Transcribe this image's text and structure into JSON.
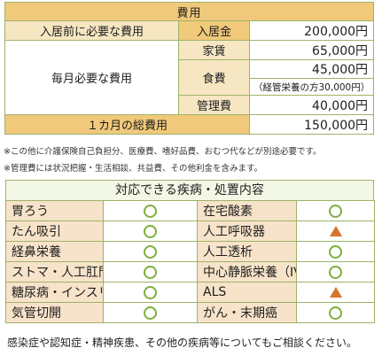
{
  "cost": {
    "title": "費用",
    "entry_fee_label": "入居前に必要な費用",
    "entry_fee_sub": "入居金",
    "entry_fee_value": "200,000円",
    "monthly_label": "毎月必要な費用",
    "rent_label": "家賃",
    "rent_value": "65,000円",
    "food_label": "食費",
    "food_value": "45,000円",
    "food_note": "（経管栄養の方30,000円）",
    "mgmt_label": "管理費",
    "mgmt_value": "40,000円",
    "total_label": "１カ月の総費用",
    "total_value": "150,000円"
  },
  "notes": [
    "※この他に介護保険自己負担分、医療費、嗜好品費、おむつ代などが別途必要です。",
    "※管理費には状況把握・生活相談、共益費、その他利金を含みます。"
  ],
  "diseases": {
    "title": "対応できる疾病・処置内容",
    "rows": [
      {
        "left": "胃ろう",
        "left_mark": "circle",
        "right": "在宅酸素",
        "right_mark": "circle"
      },
      {
        "left": "たん吸引",
        "left_mark": "circle",
        "right": "人工呼吸器",
        "right_mark": "triangle"
      },
      {
        "left": "経鼻栄養",
        "left_mark": "circle",
        "right": "人工透析",
        "right_mark": "circle"
      },
      {
        "left": "ストマ・人工肛門",
        "left_mark": "circle",
        "right": "中心静脈栄養（IVH）",
        "right_mark": "circle"
      },
      {
        "left": "糖尿病・インスリン",
        "left_mark": "circle",
        "right": "ALS",
        "right_mark": "triangle"
      },
      {
        "left": "気管切開",
        "left_mark": "circle",
        "right": "がん・末期癌",
        "right_mark": "circle"
      }
    ]
  },
  "footer": "感染症や認知症・精神疾患、その他の疾病等についてもご相談ください。",
  "colors": {
    "border": "#9fb26a",
    "header": "#f0c97a",
    "label": "#f7e6c2",
    "circle": "#7eaf3c",
    "triangle": "#d8742a"
  }
}
